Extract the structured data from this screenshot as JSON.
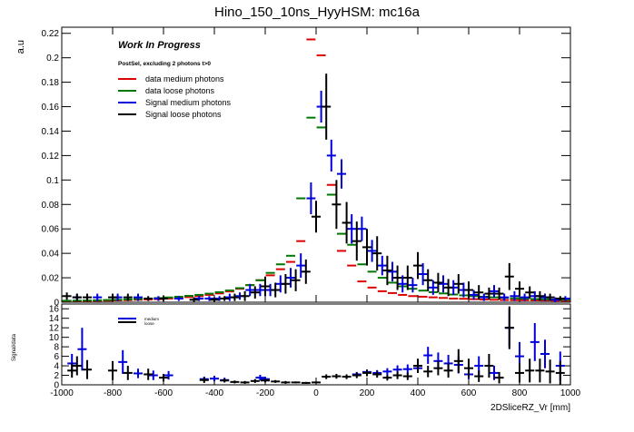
{
  "chart_data": [
    {
      "panel": "main",
      "type": "scatter",
      "title": "Hino_150_10ns_HyyHSM: mc16a",
      "ylabel": "a.u",
      "xlim": [
        -1000,
        1000
      ],
      "ylim": [
        0,
        0.225
      ],
      "yticks": [
        0,
        0.02,
        0.04,
        0.06,
        0.08,
        0.1,
        0.12,
        0.14,
        0.16,
        0.18,
        0.2,
        0.22
      ],
      "ytick_labels": [
        "0",
        "0.02",
        "0.04",
        "0.06",
        "0.08",
        "0.1",
        "0.12",
        "0.14",
        "0.16",
        "0.18",
        "0.2",
        "0.22"
      ],
      "annotation_title": "Work In Progress",
      "annotation_sub": "PostSel, excluding 2 photons t>0",
      "legend": [
        {
          "key": "data_medium",
          "label": "data medium photons",
          "color": "#dd0000"
        },
        {
          "key": "data_loose",
          "label": "data loose photons",
          "color": "#007700"
        },
        {
          "key": "sig_medium",
          "label": "Signal medium photons",
          "color": "#0000dd"
        },
        {
          "key": "sig_loose",
          "label": "Signal loose photons",
          "color": "#000000"
        }
      ],
      "series": [
        {
          "name": "data medium photons",
          "color": "#dd0000",
          "style": "dash",
          "x": [
            -980,
            -940,
            -900,
            -860,
            -820,
            -780,
            -740,
            -700,
            -660,
            -620,
            -580,
            -540,
            -500,
            -460,
            -420,
            -380,
            -340,
            -300,
            -260,
            -220,
            -180,
            -140,
            -100,
            -60,
            -20,
            20,
            60,
            100,
            140,
            180,
            220,
            260,
            300,
            340,
            380,
            420,
            460,
            500,
            540,
            580,
            620,
            660,
            700,
            740,
            780,
            820,
            860,
            900,
            940,
            980
          ],
          "y": [
            0.001,
            0.001,
            0.001,
            0.0012,
            0.0013,
            0.0015,
            0.0017,
            0.002,
            0.0022,
            0.0025,
            0.003,
            0.0035,
            0.0042,
            0.005,
            0.006,
            0.0072,
            0.0088,
            0.011,
            0.014,
            0.018,
            0.022,
            0.027,
            0.033,
            0.05,
            0.215,
            0.202,
            0.096,
            0.042,
            0.03,
            0.017,
            0.012,
            0.009,
            0.0075,
            0.006,
            0.005,
            0.0045,
            0.004,
            0.0035,
            0.003,
            0.0028,
            0.0025,
            0.0022,
            0.002,
            0.0018,
            0.0017,
            0.0016,
            0.0015,
            0.0014,
            0.0013,
            0.0012
          ]
        },
        {
          "name": "data loose photons",
          "color": "#007700",
          "style": "dash",
          "x": [
            -980,
            -940,
            -900,
            -860,
            -820,
            -780,
            -740,
            -700,
            -660,
            -620,
            -580,
            -540,
            -500,
            -460,
            -420,
            -380,
            -340,
            -300,
            -260,
            -220,
            -180,
            -140,
            -100,
            -60,
            -20,
            20,
            60,
            100,
            140,
            180,
            220,
            260,
            300,
            340,
            380,
            420,
            460,
            500,
            540,
            580,
            620,
            660,
            700,
            740,
            780,
            820,
            860,
            900,
            940,
            980
          ],
          "y": [
            0.0012,
            0.0013,
            0.0014,
            0.0016,
            0.0018,
            0.002,
            0.0023,
            0.0026,
            0.003,
            0.0034,
            0.0039,
            0.0045,
            0.0052,
            0.006,
            0.007,
            0.0082,
            0.0096,
            0.0115,
            0.014,
            0.018,
            0.024,
            0.031,
            0.038,
            0.085,
            0.151,
            0.143,
            0.088,
            0.056,
            0.047,
            0.031,
            0.025,
            0.02,
            0.016,
            0.013,
            0.011,
            0.0095,
            0.0082,
            0.0072,
            0.0063,
            0.0056,
            0.005,
            0.0045,
            0.004,
            0.0036,
            0.0032,
            0.0029,
            0.0026,
            0.0024,
            0.0022,
            0.002
          ]
        },
        {
          "name": "Signal medium photons",
          "color": "#0000dd",
          "style": "errorbar",
          "x": [
            -940,
            -860,
            -780,
            -700,
            -620,
            -540,
            -460,
            -420,
            -380,
            -340,
            -300,
            -260,
            -220,
            -180,
            -140,
            -100,
            -60,
            -20,
            20,
            60,
            100,
            140,
            180,
            220,
            260,
            300,
            340,
            380,
            420,
            460,
            500,
            540,
            580,
            620,
            660,
            700,
            740,
            780,
            820,
            860,
            900,
            940,
            980
          ],
          "y": [
            0.004,
            0.004,
            0.004,
            0.004,
            0.003,
            0.003,
            0.003,
            0.003,
            0.003,
            0.004,
            0.005,
            0.01,
            0.01,
            0.01,
            0.015,
            0.02,
            0.03,
            0.085,
            0.16,
            0.12,
            0.105,
            0.06,
            0.06,
            0.042,
            0.03,
            0.025,
            0.015,
            0.014,
            0.023,
            0.012,
            0.015,
            0.012,
            0.01,
            0.006,
            0.004,
            0.009,
            0.004,
            0.005,
            0.004,
            0.005,
            0.004,
            0.002,
            0.003
          ],
          "err": [
            0.003,
            0.003,
            0.003,
            0.003,
            0.002,
            0.002,
            0.002,
            0.002,
            0.002,
            0.003,
            0.003,
            0.005,
            0.005,
            0.005,
            0.007,
            0.008,
            0.01,
            0.013,
            0.013,
            0.013,
            0.012,
            0.012,
            0.01,
            0.009,
            0.008,
            0.008,
            0.007,
            0.006,
            0.009,
            0.006,
            0.007,
            0.006,
            0.006,
            0.004,
            0.003,
            0.005,
            0.003,
            0.004,
            0.003,
            0.004,
            0.003,
            0.002,
            0.002
          ]
        },
        {
          "name": "Signal loose photons",
          "color": "#000000",
          "style": "errorbar",
          "x": [
            -980,
            -940,
            -900,
            -800,
            -740,
            -660,
            -600,
            -480,
            -400,
            -360,
            -320,
            -280,
            -240,
            -200,
            -160,
            -120,
            -80,
            -40,
            0,
            40,
            80,
            120,
            160,
            200,
            240,
            280,
            320,
            360,
            400,
            440,
            480,
            520,
            560,
            600,
            640,
            680,
            720,
            760,
            800,
            840,
            880,
            920,
            960
          ],
          "y": [
            0.005,
            0.004,
            0.004,
            0.004,
            0.004,
            0.003,
            0.003,
            0.002,
            0.002,
            0.003,
            0.004,
            0.005,
            0.008,
            0.013,
            0.01,
            0.015,
            0.018,
            0.025,
            0.07,
            0.16,
            0.08,
            0.065,
            0.05,
            0.045,
            0.04,
            0.026,
            0.02,
            0.02,
            0.03,
            0.018,
            0.016,
            0.012,
            0.015,
            0.01,
            0.008,
            0.007,
            0.007,
            0.021,
            0.011,
            0.008,
            0.005,
            0.004,
            0.003
          ],
          "err": [
            0.003,
            0.003,
            0.003,
            0.003,
            0.003,
            0.002,
            0.002,
            0.002,
            0.002,
            0.002,
            0.003,
            0.004,
            0.005,
            0.008,
            0.006,
            0.008,
            0.009,
            0.01,
            0.013,
            0.027,
            0.02,
            0.017,
            0.016,
            0.015,
            0.014,
            0.012,
            0.01,
            0.01,
            0.011,
            0.009,
            0.008,
            0.007,
            0.008,
            0.007,
            0.006,
            0.005,
            0.005,
            0.011,
            0.006,
            0.005,
            0.004,
            0.003,
            0.002
          ]
        }
      ]
    },
    {
      "panel": "ratio",
      "type": "scatter",
      "xlabel": "2DSliceRZ_Vr [mm]",
      "ylabel": "Signal/data",
      "xlim": [
        -1000,
        1000
      ],
      "ylim": [
        0,
        17
      ],
      "yticks": [
        0,
        2,
        4,
        6,
        8,
        10,
        12,
        14,
        16
      ],
      "ytick_labels": [
        "0",
        "2",
        "4",
        "6",
        "8",
        "10",
        "12",
        "14",
        "16"
      ],
      "xticks": [
        -1000,
        -800,
        -600,
        -400,
        -200,
        0,
        200,
        400,
        600,
        800,
        1000
      ],
      "xtick_labels": [
        "-1000",
        "-800",
        "-600",
        "-400",
        "-200",
        "0",
        "200",
        "400",
        "600",
        "800",
        "1000"
      ],
      "legend": [
        {
          "key": "medium",
          "label": "medium",
          "color": "#0000dd"
        },
        {
          "key": "loose",
          "label": "loose",
          "color": "#000000"
        }
      ],
      "series": [
        {
          "name": "medium",
          "color": "#0000dd",
          "x": [
            -960,
            -920,
            -760,
            -700,
            -640,
            -580,
            -440,
            -400,
            -360,
            -220,
            -200,
            160,
            200,
            240,
            280,
            320,
            360,
            400,
            440,
            480,
            520,
            560,
            600,
            640,
            700,
            760,
            800,
            860,
            900,
            960
          ],
          "y": [
            4.5,
            7.5,
            4.8,
            2.4,
            2.0,
            2.0,
            1.2,
            1.3,
            1.0,
            1.5,
            1.2,
            2.2,
            2.7,
            2.5,
            2.8,
            3.2,
            3.3,
            3.5,
            6.2,
            5.0,
            4.5,
            4.2,
            2.2,
            4.0,
            2.5,
            12.0,
            6.0,
            9.0,
            6.5,
            4.0
          ],
          "err": [
            2.0,
            4.5,
            2.5,
            1.0,
            1.0,
            0.9,
            0.5,
            0.6,
            0.5,
            0.6,
            0.5,
            0.5,
            0.5,
            0.6,
            0.7,
            0.9,
            1.0,
            1.0,
            1.8,
            1.8,
            1.8,
            1.8,
            1.0,
            2.0,
            1.5,
            4.0,
            3.0,
            4.0,
            3.0,
            3.0
          ]
        },
        {
          "name": "loose",
          "color": "#000000",
          "x": [
            -960,
            -940,
            -900,
            -800,
            -740,
            -660,
            -600,
            -440,
            -360,
            -320,
            -280,
            -240,
            -200,
            -160,
            -120,
            -80,
            -40,
            0,
            40,
            80,
            120,
            160,
            200,
            240,
            280,
            320,
            360,
            400,
            440,
            480,
            520,
            560,
            600,
            640,
            680,
            720,
            760,
            800,
            840,
            880,
            920,
            960
          ],
          "y": [
            3.0,
            4.0,
            3.2,
            3.0,
            2.5,
            2.2,
            1.5,
            1.0,
            0.9,
            0.6,
            0.5,
            0.8,
            0.9,
            0.7,
            0.5,
            0.5,
            0.4,
            0.5,
            1.7,
            1.8,
            1.7,
            2.0,
            2.5,
            2.2,
            1.5,
            2.0,
            1.8,
            4.0,
            2.8,
            3.5,
            3.0,
            5.0,
            3.5,
            1.8,
            4.0,
            1.5,
            12.0,
            2.5,
            3.0,
            3.0,
            2.8,
            2.5
          ],
          "err": [
            1.5,
            2.0,
            2.0,
            2.0,
            1.5,
            1.2,
            0.8,
            0.6,
            0.4,
            0.3,
            0.3,
            0.4,
            0.4,
            0.3,
            0.3,
            0.2,
            0.2,
            0.2,
            0.5,
            0.5,
            0.5,
            0.6,
            0.7,
            0.7,
            0.6,
            0.8,
            0.8,
            1.5,
            1.2,
            1.5,
            1.5,
            2.5,
            2.0,
            1.2,
            2.5,
            1.2,
            4.5,
            2.0,
            2.5,
            2.5,
            2.5,
            2.5
          ]
        }
      ]
    }
  ]
}
